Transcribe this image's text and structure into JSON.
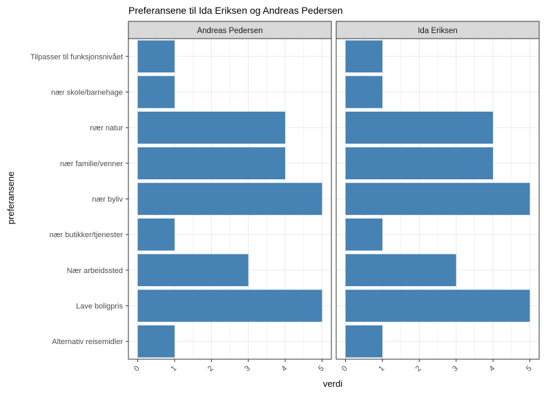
{
  "chart_data": {
    "type": "bar",
    "orientation": "horizontal",
    "title": "Preferansene til Ida Eriksen og Andreas Pedersen",
    "xlabel": "verdi",
    "ylabel": "preferansene",
    "xlim": [
      0,
      5
    ],
    "xticks": [
      "0",
      "1",
      "2",
      "3",
      "4",
      "5"
    ],
    "grid": true,
    "bar_color": "#4682B4",
    "categories": [
      "Tilpasser til funksjonsnivået",
      "nær skole/barnehage",
      "nær natur",
      "nær familie/venner",
      "nær byliv",
      "nær butikker/tjenester",
      "Nær arbeidssted",
      "Lave boligpris",
      "Alternativ reisemidler"
    ],
    "panels": [
      {
        "strip": "Andreas Pedersen",
        "values": [
          1,
          1,
          4,
          4,
          5,
          1,
          3,
          5,
          1
        ]
      },
      {
        "strip": "Ida Eriksen",
        "values": [
          1,
          1,
          4,
          4,
          5,
          1,
          3,
          5,
          1
        ]
      }
    ]
  }
}
